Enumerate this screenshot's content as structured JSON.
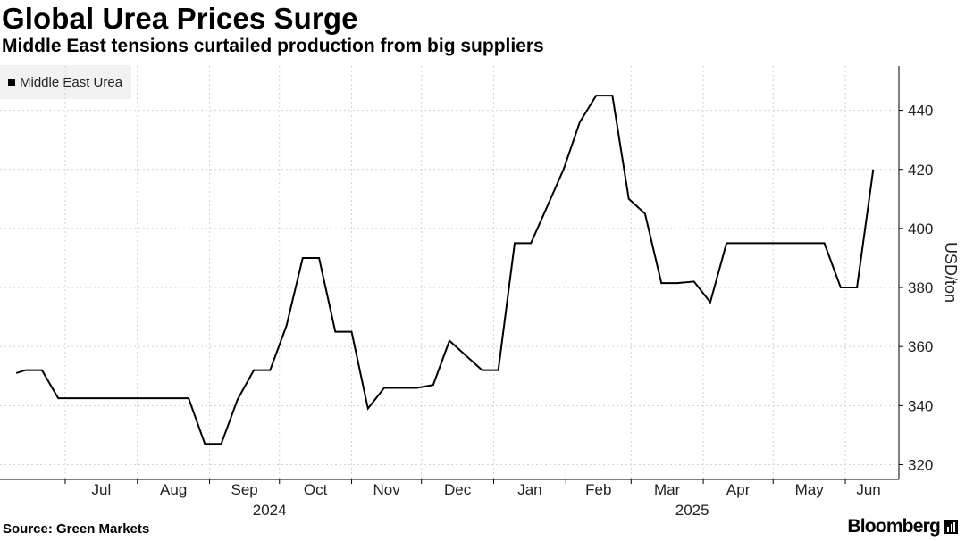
{
  "chart_data": {
    "type": "line",
    "title": "Global Urea Prices Surge",
    "subtitle": "Middle East tensions curtailed production from big suppliers",
    "ylabel": "USD/ton",
    "ylim": [
      315,
      455
    ],
    "yticks": [
      320,
      340,
      360,
      380,
      400,
      420,
      440
    ],
    "grid": true,
    "legend_position": "top-left",
    "months": [
      "Jul",
      "Aug",
      "Sep",
      "Oct",
      "Nov",
      "Dec",
      "Jan",
      "Feb",
      "Mar",
      "Apr",
      "May",
      "Jun"
    ],
    "years": [
      {
        "label": "2024",
        "under_month": "Sep"
      },
      {
        "label": "2025",
        "under_month": "Mar"
      }
    ],
    "series": [
      {
        "name": "Middle East Urea",
        "color": "#000000",
        "x": [
          "2024-06-10",
          "2024-06-14",
          "2024-06-21",
          "2024-06-28",
          "2024-07-05",
          "2024-07-12",
          "2024-07-19",
          "2024-07-26",
          "2024-08-02",
          "2024-08-09",
          "2024-08-16",
          "2024-08-23",
          "2024-08-30",
          "2024-09-06",
          "2024-09-13",
          "2024-09-20",
          "2024-09-27",
          "2024-10-04",
          "2024-10-11",
          "2024-10-18",
          "2024-10-25",
          "2024-11-01",
          "2024-11-08",
          "2024-11-15",
          "2024-11-22",
          "2024-11-29",
          "2024-12-06",
          "2024-12-13",
          "2024-12-20",
          "2024-12-27",
          "2025-01-03",
          "2025-01-10",
          "2025-01-17",
          "2025-01-24",
          "2025-01-31",
          "2025-02-07",
          "2025-02-14",
          "2025-02-21",
          "2025-02-28",
          "2025-03-07",
          "2025-03-14",
          "2025-03-21",
          "2025-03-28",
          "2025-04-04",
          "2025-04-11",
          "2025-04-18",
          "2025-04-25",
          "2025-05-02",
          "2025-05-09",
          "2025-05-16",
          "2025-05-23",
          "2025-05-30",
          "2025-06-06",
          "2025-06-13"
        ],
        "values": [
          351,
          352,
          352,
          342.5,
          342.5,
          342.5,
          342.5,
          342.5,
          342.5,
          342.5,
          342.5,
          342.5,
          327,
          327,
          342,
          352,
          352,
          367,
          390,
          390,
          365,
          365,
          339,
          346,
          346,
          346,
          347,
          362,
          357,
          352,
          352,
          395,
          395,
          407.5,
          420,
          436,
          445,
          445,
          410,
          405,
          381.5,
          381.5,
          382,
          375,
          395,
          395,
          395,
          395,
          395,
          395,
          395,
          380,
          380,
          420
        ]
      }
    ],
    "source": "Source: Green Markets",
    "brand": "Bloomberg"
  }
}
